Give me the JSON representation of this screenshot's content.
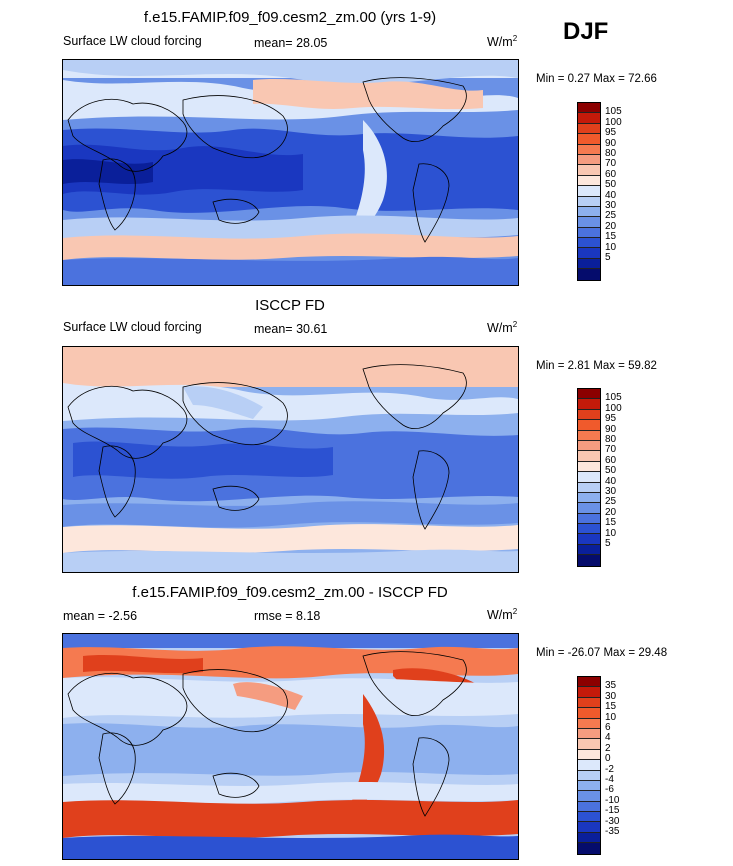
{
  "panel1": {
    "title": "f.e15.FAMIP.f09_f09.cesm2_zm.00 (yrs 1-9)",
    "field": "Surface LW cloud forcing",
    "mean_label": "mean=",
    "mean_value": "28.05",
    "units_base": "W/m",
    "units_exp": "2",
    "min_label": "Min =",
    "min_value": "0.27",
    "max_label": "Max =",
    "max_value": "72.66"
  },
  "season": "DJF",
  "panel2": {
    "title": "ISCCP FD",
    "field": "Surface LW cloud forcing",
    "mean_label": "mean=",
    "mean_value": "30.61",
    "units_base": "W/m",
    "units_exp": "2",
    "min_label": "Min =",
    "min_value": "2.81",
    "max_label": "Max =",
    "max_value": "59.82"
  },
  "panel3": {
    "title": "f.e15.FAMIP.f09_f09.cesm2_zm.00 - ISCCP FD",
    "mean_label": "mean =",
    "mean_value": "-2.56",
    "rmse_label": "rmse =",
    "rmse_value": "8.18",
    "units_base": "W/m",
    "units_exp": "2",
    "min_label": "Min =",
    "min_value": "-26.07",
    "max_label": "Max =",
    "max_value": "29.48"
  },
  "colorbar_abs": {
    "levels": [
      "105",
      "100",
      "95",
      "90",
      "80",
      "70",
      "60",
      "50",
      "40",
      "30",
      "25",
      "20",
      "15",
      "10",
      "5"
    ],
    "colors": [
      "#8b0000",
      "#c41a0a",
      "#e0401c",
      "#f05a2c",
      "#f57a50",
      "#f59c80",
      "#f9c7b2",
      "#fde7dc",
      "#dce8fb",
      "#b8cff5",
      "#8db0ee",
      "#6a91e6",
      "#4b72de",
      "#2c52d2",
      "#1a37c0",
      "#0a1f9a",
      "#050c6c"
    ]
  },
  "colorbar_diff": {
    "levels": [
      "35",
      "30",
      "15",
      "10",
      "6",
      "4",
      "2",
      "0",
      "-2",
      "-4",
      "-6",
      "-10",
      "-15",
      "-30",
      "-35"
    ],
    "colors": [
      "#8b0000",
      "#c41a0a",
      "#e0401c",
      "#f05a2c",
      "#f57a50",
      "#f59c80",
      "#f9c7b2",
      "#fde7dc",
      "#dce8fb",
      "#b8cff5",
      "#8db0ee",
      "#6a91e6",
      "#4b72de",
      "#2c52d2",
      "#1a37c0",
      "#0a1f9a",
      "#050c6c"
    ]
  }
}
